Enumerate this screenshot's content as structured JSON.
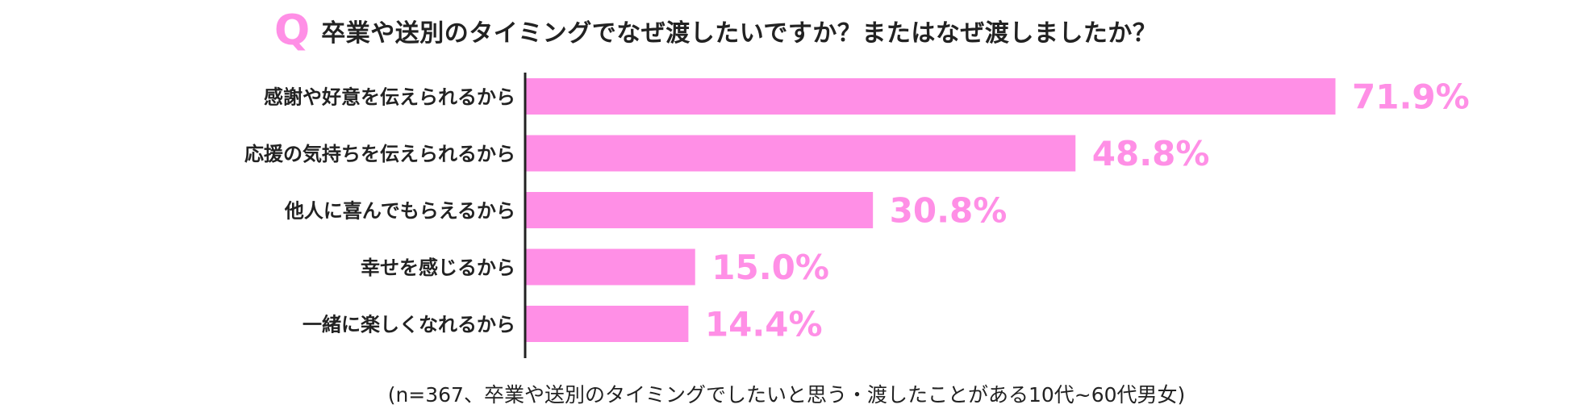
{
  "question": {
    "mark": "Q",
    "text": "卒業や送別のタイミングでなぜ渡したいですか？またはなぜ渡しましたか？"
  },
  "footnote": "(n=367、卒業や送別のタイミングでしたいと思う・渡したことがある10代~60代男女)",
  "colors": {
    "bar": "#ff8fe6",
    "value_label": "#ff8fe6",
    "axis": "#222222",
    "text": "#222222"
  },
  "chart_data": {
    "type": "bar",
    "orientation": "horizontal",
    "categories": [
      "感謝や好意を伝えられるから",
      "応援の気持ちを伝えられるから",
      "他人に喜んでもらえるから",
      "幸せを感じるから",
      "一緒に楽しくなれるから"
    ],
    "values": [
      71.9,
      48.8,
      30.8,
      15.0,
      14.4
    ],
    "value_labels": [
      "71.9%",
      "48.8%",
      "30.8%",
      "15.0%",
      "14.4%"
    ],
    "unit": "%",
    "xlim": [
      0,
      100
    ],
    "grid": false,
    "legend": "none"
  }
}
